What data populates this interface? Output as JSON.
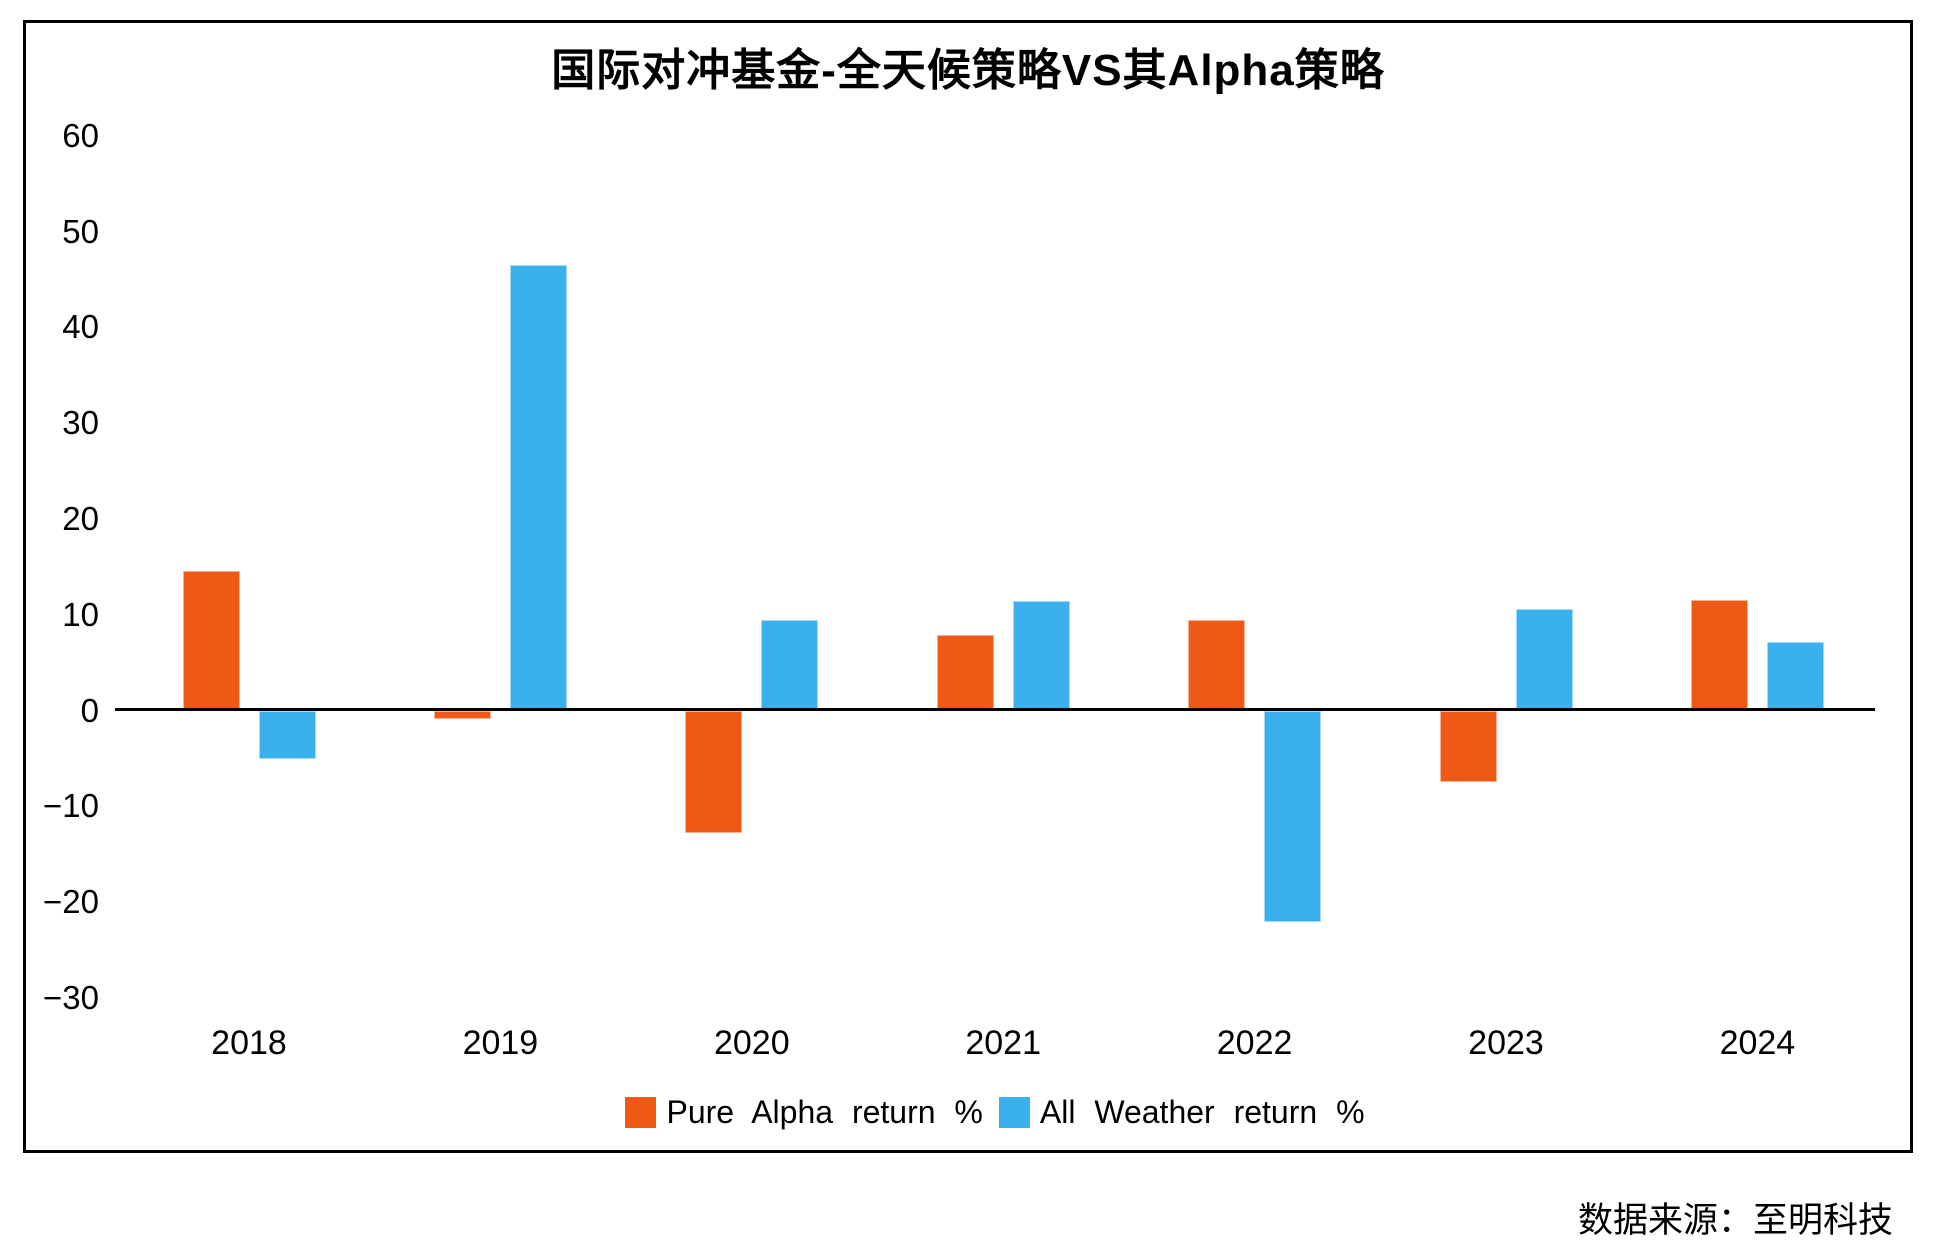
{
  "source_note": "数据来源：至明科技",
  "chart_data": {
    "type": "bar",
    "title": "国际对冲基金-全天候策略VS其Alpha策略",
    "xlabel": "",
    "ylabel": "",
    "categories": [
      "2018",
      "2019",
      "2020",
      "2021",
      "2022",
      "2023",
      "2024"
    ],
    "series": [
      {
        "name": "Pure Alpha return %",
        "color": "#EE5A16",
        "values": [
          14.5,
          -0.8,
          -12.7,
          7.8,
          9.4,
          -7.4,
          11.5
        ]
      },
      {
        "name": "All Weather return %",
        "color": "#3BB0EE",
        "values": [
          -5.0,
          46.5,
          9.4,
          11.4,
          -22.0,
          10.5,
          7.1
        ]
      }
    ],
    "ylim": [
      -30,
      60
    ],
    "yticks": [
      {
        "label": "60",
        "value": 60
      },
      {
        "label": "50",
        "value": 50
      },
      {
        "label": "40",
        "value": 40
      },
      {
        "label": "30",
        "value": 30
      },
      {
        "label": "20",
        "value": 20
      },
      {
        "label": "10",
        "value": 10
      },
      {
        "label": "0",
        "value": 0
      },
      {
        "label": "−10",
        "value": -10
      },
      {
        "label": "−20",
        "value": -20
      },
      {
        "label": "−30",
        "value": -30
      }
    ],
    "grid": false,
    "legend_position": "bottom-center"
  }
}
